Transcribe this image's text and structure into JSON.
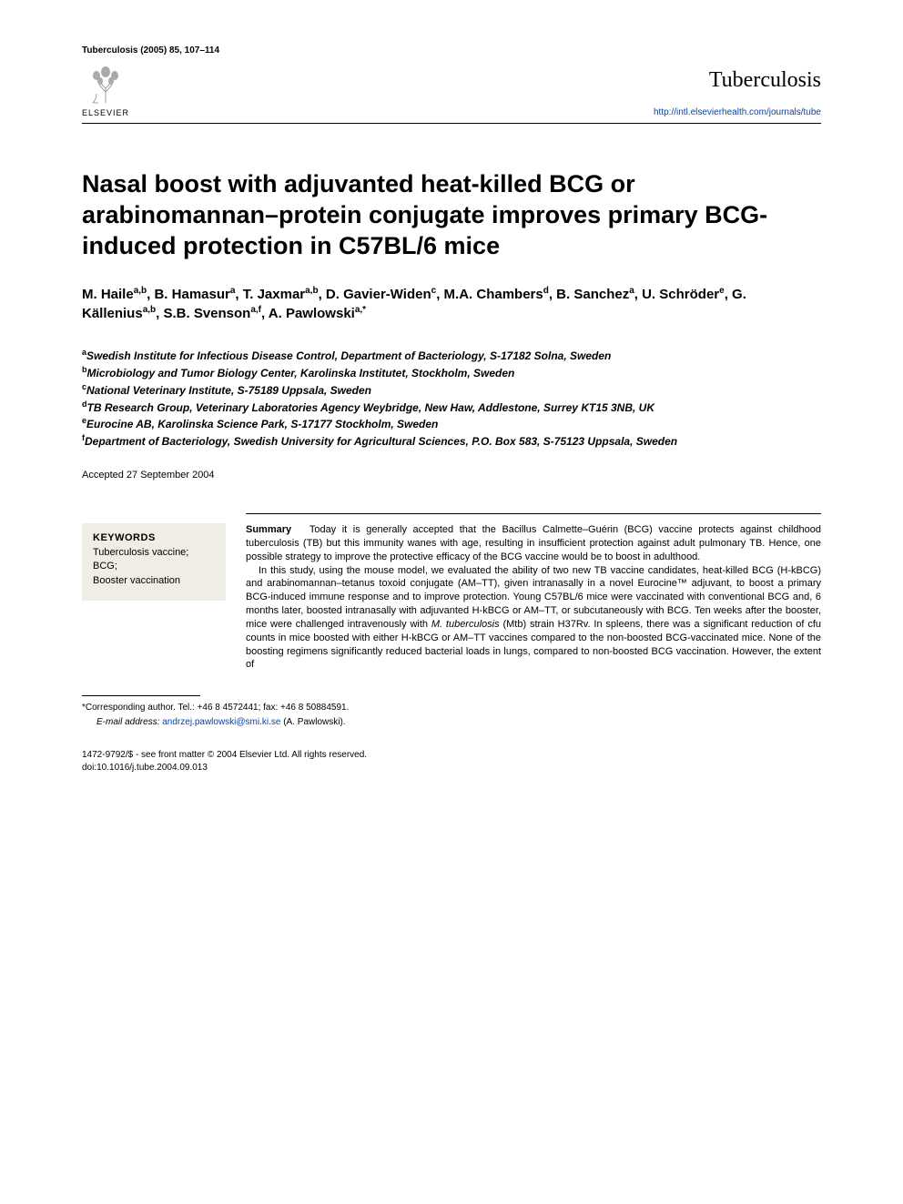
{
  "header": {
    "journal_ref": "Tuberculosis (2005) 85, 107–114",
    "publisher_name": "ELSEVIER",
    "journal_name": "Tuberculosis",
    "journal_url": "http://intl.elsevierhealth.com/journals/tube",
    "logo_color": "#e8763a"
  },
  "article": {
    "title": "Nasal boost with adjuvanted heat-killed BCG or arabinomannan–protein conjugate improves primary BCG-induced protection in C57BL/6 mice",
    "authors_html": "M. Haile<sup>a,b</sup>, B. Hamasur<sup>a</sup>, T. Jaxmar<sup>a,b</sup>, D. Gavier-Widen<sup>c</sup>, M.A. Chambers<sup>d</sup>, B. Sanchez<sup>a</sup>, U. Schröder<sup>e</sup>, G. Källenius<sup>a,b</sup>, S.B. Svenson<sup>a,f</sup>, A. Pawlowski<sup>a,*</sup>",
    "affiliations": [
      {
        "sup": "a",
        "text": "Swedish Institute for Infectious Disease Control, Department of Bacteriology, S-17182 Solna, Sweden"
      },
      {
        "sup": "b",
        "text": "Microbiology and Tumor Biology Center, Karolinska Institutet, Stockholm, Sweden"
      },
      {
        "sup": "c",
        "text": "National Veterinary Institute, S-75189 Uppsala, Sweden"
      },
      {
        "sup": "d",
        "text": "TB Research Group, Veterinary Laboratories Agency Weybridge, New Haw, Addlestone, Surrey KT15 3NB, UK"
      },
      {
        "sup": "e",
        "text": "Eurocine AB, Karolinska Science Park, S-17177 Stockholm, Sweden"
      },
      {
        "sup": "f",
        "text": "Department of Bacteriology, Swedish University for Agricultural Sciences, P.O. Box 583, S-75123 Uppsala, Sweden"
      }
    ],
    "accepted": "Accepted 27 September 2004"
  },
  "keywords": {
    "heading": "KEYWORDS",
    "items": "Tuberculosis vaccine;\nBCG;\nBooster vaccination",
    "box_bg": "#f0ede6"
  },
  "summary": {
    "label": "Summary",
    "para1": "Today it is generally accepted that the Bacillus Calmette–Guérin (BCG) vaccine protects against childhood tuberculosis (TB) but this immunity wanes with age, resulting in insufficient protection against adult pulmonary TB. Hence, one possible strategy to improve the protective efficacy of the BCG vaccine would be to boost in adulthood.",
    "para2": "In this study, using the mouse model, we evaluated the ability of two new TB vaccine candidates, heat-killed BCG (H-kBCG) and arabinomannan–tetanus toxoid conjugate (AM–TT), given intranasally in a novel Eurocine™ adjuvant, to boost a primary BCG-induced immune response and to improve protection. Young C57BL/6 mice were vaccinated with conventional BCG and, 6 months later, boosted intranasally with adjuvanted H-kBCG or AM–TT, or subcutaneously with BCG. Ten weeks after the booster, mice were challenged intravenously with M. tuberculosis (Mtb) strain H37Rv. In spleens, there was a significant reduction of cfu counts in mice boosted with either H-kBCG or AM–TT vaccines compared to the non-boosted BCG-vaccinated mice. None of the boosting regimens significantly reduced bacterial loads in lungs, compared to non-boosted BCG vaccination. However, the extent of",
    "italic_term": "M. tuberculosis"
  },
  "footer": {
    "corresponding": "*Corresponding author. Tel.: +46 8 4572441; fax: +46 8 50884591.",
    "email_label": "E-mail address:",
    "email": "andrzej.pawlowski@smi.ki.se",
    "email_suffix": " (A. Pawlowski).",
    "issn_line": "1472-9792/$ - see front matter © 2004 Elsevier Ltd. All rights reserved.",
    "doi_line": "doi:10.1016/j.tube.2004.09.013"
  },
  "colors": {
    "link": "#0645ad",
    "text": "#000000",
    "background": "#ffffff"
  }
}
